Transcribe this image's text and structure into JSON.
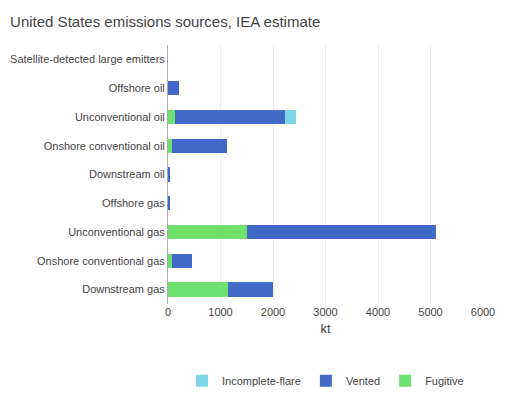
{
  "chart_data": {
    "type": "bar",
    "orientation": "horizontal",
    "stacked": true,
    "title": "United States emissions sources, IEA estimate",
    "categories": [
      "Satellite-detected large emitters",
      "Offshore oil",
      "Unconventional oil",
      "Onshore conventional oil",
      "Downstream oil",
      "Offshore gas",
      "Unconventional gas",
      "Onshore conventional gas",
      "Downstream gas"
    ],
    "series": [
      {
        "name": "Fugitive",
        "color": "#6ee06e",
        "values": [
          0,
          0,
          130,
          80,
          0,
          0,
          1500,
          70,
          1150
        ]
      },
      {
        "name": "Vented",
        "color": "#4169c8",
        "values": [
          0,
          200,
          2100,
          1050,
          30,
          40,
          3600,
          380,
          850
        ]
      },
      {
        "name": "Incomplete-flare",
        "color": "#7ed6e8",
        "values": [
          0,
          0,
          200,
          0,
          0,
          0,
          0,
          0,
          0
        ]
      }
    ],
    "xlabel": "kt",
    "xlim": [
      0,
      6000
    ],
    "xticks": [
      0,
      1000,
      2000,
      3000,
      4000,
      5000,
      6000
    ],
    "grid": true,
    "legend": "bottom"
  }
}
